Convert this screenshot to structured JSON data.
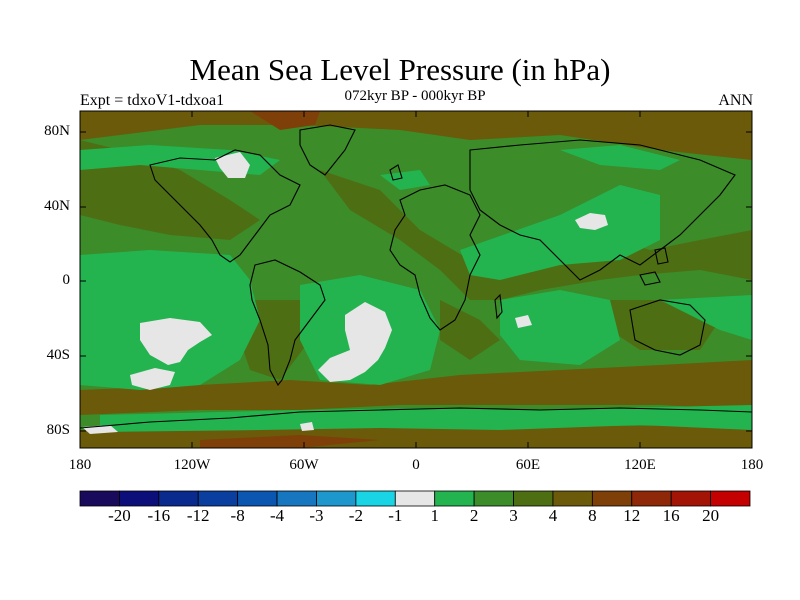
{
  "title": "Mean Sea Level Pressure (in hPa)",
  "subtitle_left": "Expt = tdxoV1-tdxoa1",
  "subtitle_center": "072kyr BP - 000kyr BP",
  "subtitle_right": "ANN",
  "y_ticks": [
    "80N",
    "40N",
    "0",
    "40S",
    "80S"
  ],
  "x_ticks": [
    "180",
    "120W",
    "60W",
    "0",
    "60E",
    "120E",
    "180"
  ],
  "colorbar": {
    "colors": [
      "#1a0a5c",
      "#0c0f7a",
      "#0a2a8e",
      "#0a3fa0",
      "#0a56b0",
      "#1776c0",
      "#1e98cc",
      "#18d4e4",
      "#e6e6e6",
      "#23b450",
      "#3c8c2a",
      "#4e6e14",
      "#6a5a0a",
      "#7e4008",
      "#8e2808",
      "#a41406",
      "#c40000"
    ],
    "labels": [
      "-20",
      "-16",
      "-12",
      "-8",
      "-4",
      "-3",
      "-2",
      "-1",
      "1",
      "2",
      "3",
      "4",
      "8",
      "12",
      "16",
      "20"
    ]
  }
}
